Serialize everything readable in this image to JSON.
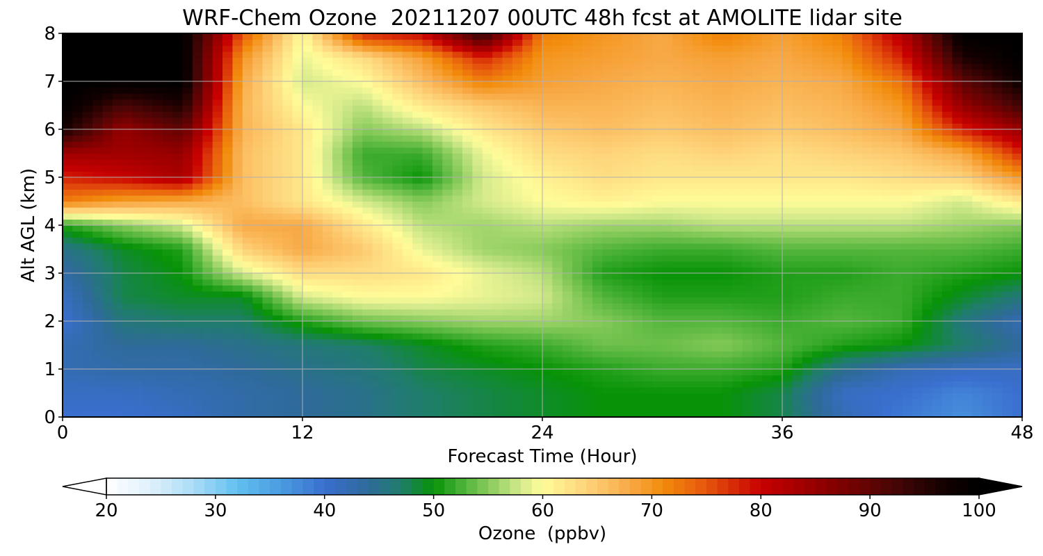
{
  "chart_data": {
    "type": "heatmap",
    "title": "WRF-Chem Ozone  20211207 00UTC 48h fcst at AMOLITE lidar site",
    "xlabel": "Forecast Time (Hour)",
    "ylabel": "Alt AGL (km)",
    "xlim": [
      0,
      48
    ],
    "ylim": [
      0,
      8
    ],
    "x_ticks": [
      "0",
      "12",
      "24",
      "36",
      "48"
    ],
    "y_ticks": [
      "0",
      "1",
      "2",
      "3",
      "4",
      "5",
      "6",
      "7",
      "8"
    ],
    "grid": true,
    "x": [
      0,
      3,
      6,
      9,
      12,
      15,
      18,
      21,
      24,
      27,
      30,
      33,
      36,
      39,
      42,
      45,
      48
    ],
    "y": [
      0,
      0.5,
      1,
      1.5,
      2,
      2.5,
      3,
      3.5,
      4,
      4.5,
      5,
      5.5,
      6,
      6.5,
      7,
      7.5,
      8
    ],
    "z": [
      [
        40,
        40,
        41,
        43,
        44,
        45,
        47,
        48,
        49,
        50,
        50,
        50,
        48,
        42,
        39,
        37,
        40
      ],
      [
        41,
        41,
        42,
        43,
        44,
        45,
        47,
        48,
        49,
        50,
        50,
        50,
        48,
        41,
        40,
        38,
        40
      ],
      [
        42,
        43,
        43,
        44,
        45,
        46,
        48,
        49,
        50,
        51,
        52,
        52,
        51,
        45,
        42,
        41,
        41
      ],
      [
        42,
        44,
        44,
        45,
        46,
        47,
        49,
        51,
        52,
        54,
        54,
        55,
        53,
        51,
        50,
        47,
        44
      ],
      [
        40,
        46,
        47,
        47,
        51,
        54,
        55,
        56,
        56,
        55,
        53,
        53,
        52,
        53,
        52,
        46,
        42
      ],
      [
        41,
        48,
        49,
        49,
        58,
        60,
        60,
        59,
        58,
        53,
        51,
        51,
        51,
        52,
        52,
        49,
        46
      ],
      [
        43,
        48,
        50,
        58,
        63,
        63,
        62,
        59,
        57,
        51,
        50,
        50,
        51,
        51,
        52,
        51,
        50
      ],
      [
        45,
        49,
        51,
        64,
        68,
        65,
        59,
        56,
        55,
        53,
        52,
        52,
        53,
        53,
        53,
        53,
        52
      ],
      [
        51,
        55,
        58,
        68,
        68,
        62,
        57,
        56,
        57,
        56,
        56,
        57,
        57,
        57,
        57,
        56,
        55
      ],
      [
        72,
        69,
        68,
        66,
        62,
        58,
        55,
        58,
        60,
        61,
        60,
        60,
        60,
        60,
        60,
        58,
        62
      ],
      [
        78,
        80,
        83,
        66,
        62,
        53,
        50,
        58,
        61,
        63,
        62,
        62,
        62,
        62,
        63,
        64,
        70
      ],
      [
        84,
        84,
        85,
        66,
        62,
        52,
        52,
        59,
        63,
        64,
        63,
        64,
        63,
        64,
        65,
        68,
        78
      ],
      [
        97,
        85,
        90,
        67,
        62,
        55,
        57,
        62,
        65,
        66,
        65,
        66,
        65,
        66,
        68,
        78,
        85
      ],
      [
        100,
        92,
        96,
        67,
        60,
        57,
        62,
        65,
        67,
        67,
        66,
        67,
        66,
        67,
        70,
        85,
        93
      ],
      [
        100,
        100,
        100,
        68,
        58,
        60,
        66,
        72,
        69,
        68,
        67,
        68,
        67,
        68,
        73,
        90,
        98
      ],
      [
        100,
        100,
        100,
        70,
        59,
        63,
        69,
        78,
        70,
        69,
        68,
        69,
        68,
        70,
        78,
        96,
        100
      ],
      [
        100,
        100,
        100,
        75,
        60,
        78,
        80,
        95,
        72,
        70,
        68,
        72,
        69,
        72,
        82,
        100,
        100
      ]
    ],
    "colorbar": {
      "label": "Ozone  (ppbv)",
      "min": 20,
      "max": 100,
      "ticks": [
        "20",
        "30",
        "40",
        "50",
        "60",
        "70",
        "80",
        "90",
        "100"
      ],
      "extend": "both",
      "stops": [
        [
          20,
          "#ffffff"
        ],
        [
          24,
          "#dff0fb"
        ],
        [
          28,
          "#a9dcf6"
        ],
        [
          32,
          "#62bff0"
        ],
        [
          36,
          "#4a9be0"
        ],
        [
          40,
          "#3a6fcf"
        ],
        [
          44,
          "#2f6a9a"
        ],
        [
          47,
          "#1f7d6b"
        ],
        [
          50,
          "#079307"
        ],
        [
          52,
          "#3bab2d"
        ],
        [
          55,
          "#86ca5a"
        ],
        [
          58,
          "#d4ea8c"
        ],
        [
          60,
          "#fffc99"
        ],
        [
          64,
          "#fed37a"
        ],
        [
          68,
          "#f8a946"
        ],
        [
          71,
          "#f28c0c"
        ],
        [
          75,
          "#e6550d"
        ],
        [
          80,
          "#c80000"
        ],
        [
          86,
          "#8c0000"
        ],
        [
          92,
          "#4a0505"
        ],
        [
          97,
          "#120000"
        ],
        [
          100,
          "#000000"
        ]
      ]
    }
  }
}
